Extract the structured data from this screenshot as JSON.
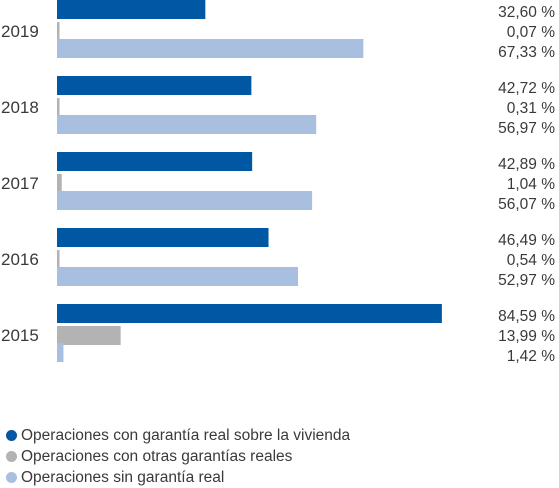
{
  "chart_data": {
    "type": "bar",
    "orientation": "horizontal",
    "categories": [
      "2019",
      "2018",
      "2017",
      "2016",
      "2015"
    ],
    "series": [
      {
        "name": "Operaciones con garantía real sobre la vivienda",
        "color": "#0057a3",
        "values": [
          32.6,
          42.72,
          42.89,
          46.49,
          84.59
        ],
        "labels": [
          "32,60 %",
          "42,72 %",
          "42,89 %",
          "46,49 %",
          "84,59 %"
        ]
      },
      {
        "name": "Operaciones con otras garantías reales",
        "color": "#b3b3b3",
        "values": [
          0.07,
          0.31,
          1.04,
          0.54,
          13.99
        ],
        "labels": [
          "0,07 %",
          "0,31 %",
          "1,04 %",
          "0,54 %",
          "13,99 %"
        ]
      },
      {
        "name": "Operaciones sin garantía real",
        "color": "#a9bfe0",
        "values": [
          67.33,
          56.97,
          56.07,
          52.97,
          1.42
        ],
        "labels": [
          "67,33 %",
          "56,97 %",
          "56,07 %",
          "52,97 %",
          "1,42 %"
        ]
      }
    ],
    "legend_position": "bottom-left",
    "grid": false
  }
}
